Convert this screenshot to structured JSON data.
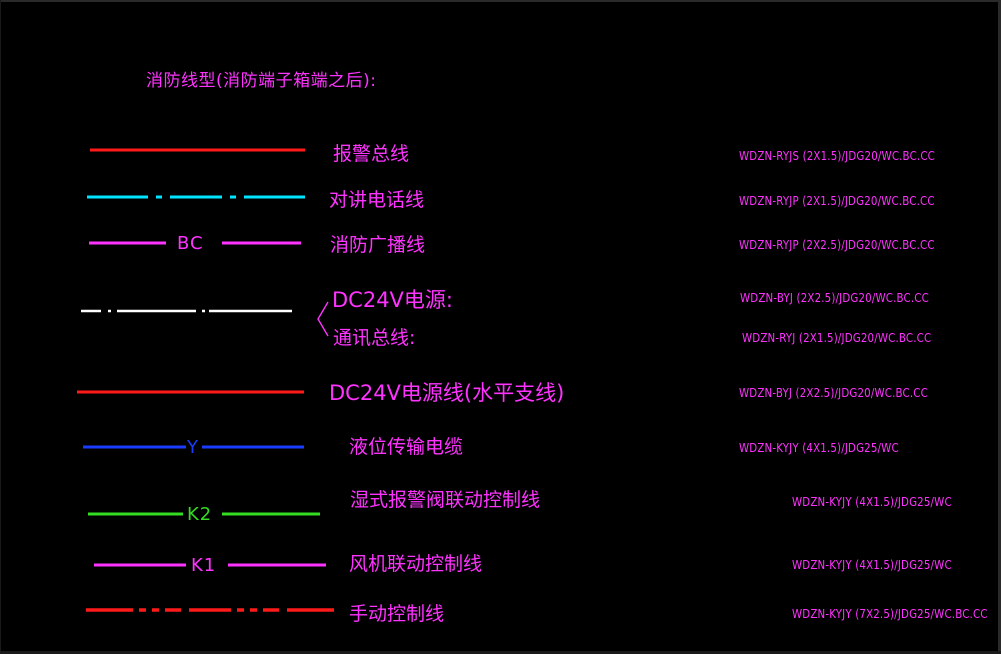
{
  "heading": "消防线型(消防端子箱端之后):",
  "rows": [
    {
      "label": "报警总线",
      "spec": "WDZN-RYJS (2X1.5)/JDG20/WC.BC.CC",
      "color": "#ff1a1a"
    },
    {
      "label": "对讲电话线",
      "spec": "WDZN-RYJP (2X1.5)/JDG20/WC.BC.CC",
      "color": "#00e5ff"
    },
    {
      "label": "消防广播线",
      "spec": "WDZN-RYJP (2X2.5)/JDG20/WC.BC.CC",
      "color": "#ff33ff",
      "line_text": "BC"
    },
    {
      "label": "DC24V电源:",
      "spec": "WDZN-BYJ (2X2.5)/JDG20/WC.BC.CC",
      "color": "#ffffff"
    },
    {
      "label": "通讯总线:",
      "spec": "WDZN-RYJ (2X1.5)/JDG20/WC.BC.CC",
      "color": "#ffffff"
    },
    {
      "label": "DC24V电源线(水平支线)",
      "spec": "WDZN-BYJ (2X2.5)/JDG20/WC.BC.CC",
      "color": "#ff1a1a"
    },
    {
      "label": "液位传输电缆",
      "spec": "WDZN-KYJY (4X1.5)/JDG25/WC",
      "color": "#1a3cff",
      "line_text": "Y"
    },
    {
      "label": "湿式报警阀联动控制线",
      "spec": "WDZN-KYJY (4X1.5)/JDG25/WC",
      "color": "#33dd22",
      "line_text": "K2"
    },
    {
      "label": "风机联动控制线",
      "spec": "WDZN-KYJY (4X1.5)/JDG25/WC",
      "color": "#ff33ff",
      "line_text": "K1"
    },
    {
      "label": "手动控制线",
      "spec": "WDZN-KYJY (7X2.5)/JDG25/WC.BC.CC",
      "color": "#ff1a1a"
    }
  ]
}
